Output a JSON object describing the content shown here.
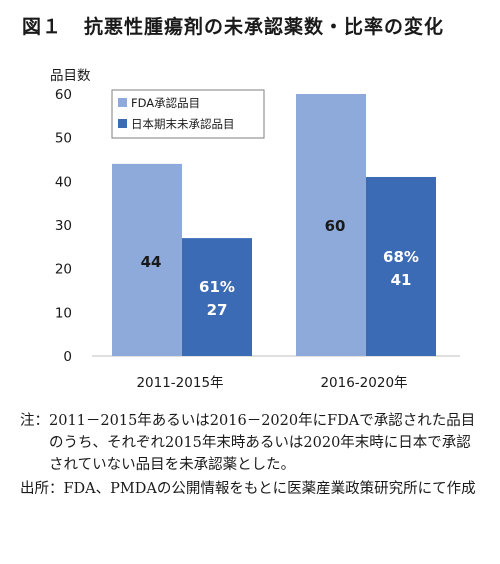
{
  "header": {
    "fig_label": "図１",
    "title": "抗悪性腫瘍剤の未承認薬数・比率の変化"
  },
  "chart_data": {
    "type": "bar",
    "ylabel": "品目数",
    "ylim": [
      0,
      60
    ],
    "yticks": [
      "0",
      "10",
      "20",
      "30",
      "40",
      "50",
      "60"
    ],
    "categories": [
      "2011-2015年",
      "2016-2020年"
    ],
    "series": [
      {
        "name": "FDA承認品目",
        "values": [
          44,
          60
        ],
        "color": "#8eaadb"
      },
      {
        "name": "日本期末未承認品目",
        "values": [
          27,
          41
        ],
        "color": "#3c6bb5"
      }
    ],
    "data_labels": {
      "fda": [
        "44",
        "60"
      ],
      "japan_pct": [
        "61%",
        "68%"
      ],
      "japan_count": [
        "27",
        "41"
      ]
    },
    "legend_position": "top-left",
    "grid": false
  },
  "notes": {
    "note_label": "注：",
    "note_text": "2011－2015年あるいは2016－2020年にFDAで承認された品目のうち、それぞれ2015年末時あるいは2020年末時に日本で承認されていない品目を未承認薬とした。",
    "source_label": "出所：",
    "source_text": "FDA、PMDAの公開情報をもとに医薬産業政策研究所にて作成"
  }
}
